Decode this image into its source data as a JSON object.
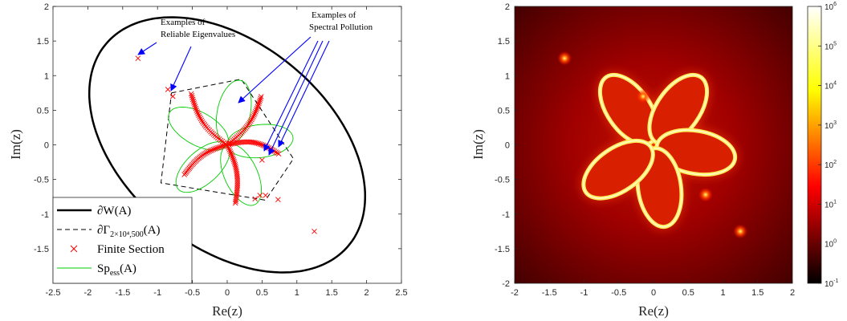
{
  "chart_data": [
    {
      "type": "scatter",
      "panel": "left",
      "xlabel": "Re(z)",
      "ylabel": "Im(z)",
      "xlim": [
        -2.5,
        2.5
      ],
      "ylim": [
        -2,
        2
      ],
      "xticks": [
        "-2.5",
        "-2",
        "-1.5",
        "-1",
        "-0.5",
        "0",
        "0.5",
        "1",
        "1.5",
        "2",
        "2.5"
      ],
      "yticks": [
        "2",
        "1.5",
        "1",
        "0.5",
        "0",
        "-0.5",
        "-1",
        "-1.5"
      ],
      "grid": false,
      "legend_position": "bottom-left",
      "annotations": {
        "reliable": [
          "Examples of",
          "Reliable Eigenvalues"
        ],
        "pollution": [
          "Examples of",
          "Spectral Pollution"
        ]
      },
      "series": [
        {
          "name": "∂W(A)",
          "type": "line",
          "color": "#000000",
          "style": "solid-thick",
          "ellipse": {
            "center": [
              0,
              0
            ],
            "semi_major": 2.27,
            "semi_minor": 1.47,
            "rotation_deg": -40
          }
        },
        {
          "name": "∂Γ",
          "name_sub": "2×10⁴,500",
          "name_suffix": "(A)",
          "type": "line",
          "color": "#000000",
          "style": "dashed",
          "x": [
            -0.8,
            0.2,
            0.95,
            0.55,
            -0.95,
            -0.8
          ],
          "y": [
            0.75,
            0.95,
            -0.2,
            -0.8,
            -0.55,
            0.75
          ]
        },
        {
          "name": "Finite Section",
          "type": "scatter",
          "color": "#ff0000",
          "marker": "x",
          "x": [
            -1.28,
            -0.85,
            -0.78,
            1.25,
            0.4,
            0.47,
            0.55,
            0.73,
            0.5
          ],
          "y": [
            1.25,
            0.8,
            0.7,
            -1.25,
            -0.78,
            -0.73,
            -0.73,
            -0.79,
            -0.22
          ]
        },
        {
          "name": "Sp",
          "name_sub": "ess",
          "name_suffix": "(A)",
          "type": "line",
          "color": "#00cc00",
          "style": "solid-thin",
          "rose": {
            "petals": 5,
            "radius": 0.95,
            "petal_width": 0.5,
            "center": [
              0,
              0
            ]
          }
        }
      ]
    },
    {
      "type": "heatmap",
      "panel": "right",
      "xlabel": "Re(z)",
      "ylabel": "Im(z)",
      "xlim": [
        -2,
        2
      ],
      "ylim": [
        -2,
        2
      ],
      "xticks": [
        "-2",
        "-1.5",
        "-1",
        "-0.5",
        "0",
        "0.5",
        "1",
        "1.5",
        "2"
      ],
      "yticks": [
        "2",
        "1.5",
        "1",
        "0.5",
        "0",
        "-0.5",
        "-1",
        "-1.5",
        "-2"
      ],
      "colormap": "hot",
      "colorbar_scale": "log",
      "colorbar_range": [
        0.1,
        1000000
      ],
      "colorbar_ticks": [
        {
          "base": "10",
          "exp": "6"
        },
        {
          "base": "10",
          "exp": "5"
        },
        {
          "base": "10",
          "exp": "4"
        },
        {
          "base": "10",
          "exp": "3"
        },
        {
          "base": "10",
          "exp": "2"
        },
        {
          "base": "10",
          "exp": "1"
        },
        {
          "base": "10",
          "exp": "0"
        },
        {
          "base": "10",
          "exp": "-1"
        }
      ],
      "bright_spots": [
        [
          -1.28,
          1.25
        ],
        [
          1.25,
          -1.25
        ],
        [
          0.75,
          -0.72
        ],
        [
          -0.15,
          0.7
        ]
      ]
    }
  ]
}
